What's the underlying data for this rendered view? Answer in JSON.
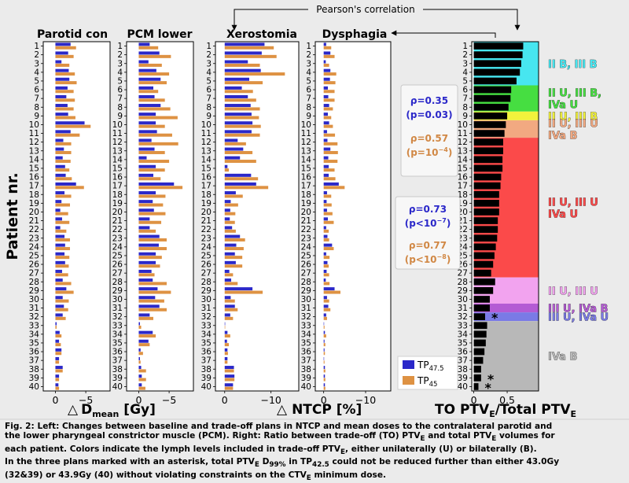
{
  "chart_data": {
    "type": "bar",
    "orientation": "horizontal",
    "y_axis_label": "Patient nr.",
    "patients": [
      1,
      2,
      3,
      4,
      5,
      6,
      7,
      8,
      9,
      10,
      11,
      12,
      13,
      14,
      15,
      16,
      17,
      18,
      19,
      20,
      21,
      22,
      23,
      24,
      25,
      26,
      27,
      28,
      29,
      30,
      31,
      32,
      33,
      34,
      35,
      36,
      37,
      38,
      39,
      40
    ],
    "legend": {
      "tp475": {
        "label": "TP",
        "sub": "47.5",
        "color": "#2b28c9"
      },
      "tp45": {
        "label": "TP",
        "sub": "45",
        "color": "#de9243"
      }
    },
    "panels": [
      {
        "key": "parotid",
        "title": "Parotid con",
        "xlim": [
          2,
          -9
        ],
        "xticks": [
          0,
          -5
        ],
        "xtick_labels": [
          "0",
          "−5"
        ],
        "tp475": [
          -2.5,
          -2.1,
          -1.0,
          -2.2,
          -2.3,
          -2.0,
          -1.8,
          -2.0,
          -2.1,
          -4.8,
          -2.5,
          -1.3,
          -1.4,
          -1.2,
          -1.6,
          -1.7,
          -3.4,
          -1.5,
          -1.0,
          -0.8,
          -1.1,
          -0.8,
          -1.5,
          -1.6,
          -1.5,
          -1.6,
          -1.1,
          -1.2,
          -1.8,
          -1.2,
          -1.4,
          -1.2,
          -0.2,
          -0.7,
          -0.6,
          -1.0,
          -0.6,
          -1.2,
          -0.6,
          -0.5
        ],
        "tp45": [
          -3.4,
          -3.0,
          -2.3,
          -3.2,
          -3.5,
          -3.0,
          -3.2,
          -3.0,
          -3.3,
          -5.8,
          -4.0,
          -2.6,
          -2.6,
          -2.5,
          -2.3,
          -2.7,
          -4.7,
          -2.6,
          -2.4,
          -2.1,
          -2.3,
          -1.8,
          -2.4,
          -2.4,
          -2.3,
          -2.2,
          -2.1,
          -2.6,
          -3.0,
          -2.2,
          -2.1,
          -1.7,
          -0.2,
          -1.0,
          -0.9,
          -1.0,
          -0.6,
          -1.2,
          -0.6,
          -0.6
        ]
      },
      {
        "key": "pcm",
        "title": "PCM lower",
        "xlim": [
          2,
          -9
        ],
        "xticks": [
          0,
          -5
        ],
        "xtick_labels": [
          "0",
          "−5"
        ],
        "tp475": [
          -1.8,
          -3.4,
          -1.6,
          -2.9,
          -3.6,
          -2.4,
          -2.6,
          -3.6,
          -2.8,
          -2.8,
          -3.0,
          -2.1,
          -2.6,
          -1.3,
          -2.8,
          -2.4,
          -5.8,
          -2.8,
          -2.3,
          -2.5,
          -1.8,
          -1.8,
          -3.4,
          -3.3,
          -2.8,
          -2.8,
          -2.1,
          -2.3,
          -3.1,
          -2.7,
          -3.4,
          -1.8,
          -0.2,
          -2.3,
          -1.6,
          -0.3,
          -0.2,
          -0.4,
          -0.5,
          -0.5
        ],
        "tp45": [
          -3.2,
          -5.3,
          -3.8,
          -5.0,
          -4.6,
          -3.2,
          -4.3,
          -5.2,
          -6.4,
          -4.3,
          -5.5,
          -6.5,
          -4.3,
          -5.0,
          -4.3,
          -3.6,
          -7.2,
          -4.4,
          -4.0,
          -4.4,
          -3.7,
          -2.8,
          -4.6,
          -4.6,
          -3.8,
          -3.5,
          -2.6,
          -4.6,
          -5.3,
          -4.2,
          -4.6,
          -2.4,
          -0.4,
          -2.8,
          -1.8,
          -0.7,
          -0.3,
          -1.2,
          -1.2,
          -1.1
        ]
      },
      {
        "key": "xerostomia",
        "title": "Xerostomia",
        "xlim": [
          2,
          -16
        ],
        "xticks": [
          0,
          -10
        ],
        "xtick_labels": [
          "0",
          "−10"
        ],
        "tp475": [
          -8.6,
          -8.0,
          -5.0,
          -7.8,
          -5.3,
          -3.7,
          -5.0,
          -5.6,
          -5.8,
          -6.0,
          -5.8,
          -2.8,
          -4.0,
          -3.3,
          -0.6,
          -5.7,
          -6.8,
          -2.4,
          -1.3,
          -1.2,
          -1.1,
          -1.6,
          -3.3,
          -2.5,
          -2.2,
          -2.4,
          -1.0,
          -1.4,
          -6.0,
          -1.3,
          -2.2,
          -1.2,
          -0.1,
          -0.6,
          -0.5,
          -0.6,
          -0.6,
          -2.0,
          -2.1,
          -1.8
        ],
        "tp45": [
          -10.6,
          -11.2,
          -7.6,
          -13.0,
          -8.2,
          -6.1,
          -6.8,
          -7.6,
          -7.4,
          -7.8,
          -7.6,
          -4.6,
          -6.0,
          -6.8,
          -0.9,
          -7.2,
          -9.4,
          -3.9,
          -2.9,
          -2.3,
          -2.2,
          -2.4,
          -4.4,
          -4.1,
          -3.8,
          -3.8,
          -1.8,
          -2.8,
          -8.2,
          -2.2,
          -2.8,
          -1.8,
          -0.1,
          -1.2,
          -0.9,
          -0.7,
          -0.6,
          -2.0,
          -2.1,
          -1.8
        ]
      },
      {
        "key": "dysphagia",
        "title": "Dysphagia",
        "xlim": [
          2,
          -16
        ],
        "xticks": [
          0,
          -10
        ],
        "xtick_labels": [
          "0",
          "−10"
        ],
        "tp475": [
          -0.6,
          -1.6,
          -0.5,
          -1.6,
          -1.5,
          -1.0,
          -1.1,
          -1.3,
          -1.0,
          -1.3,
          -0.8,
          -0.9,
          -1.6,
          -1.1,
          -1.2,
          -1.2,
          -3.6,
          -0.8,
          -0.7,
          -0.8,
          -1.0,
          -0.6,
          -0.9,
          -2.0,
          -0.6,
          -0.9,
          -0.7,
          -0.5,
          -2.6,
          -0.8,
          -1.1,
          -0.6,
          -0.1,
          -0.3,
          -0.2,
          -0.2,
          -0.1,
          -0.3,
          -0.3,
          -0.3
        ],
        "tp45": [
          -1.8,
          -2.6,
          -1.3,
          -3.0,
          -2.8,
          -2.6,
          -2.6,
          -2.2,
          -1.8,
          -2.2,
          -2.7,
          -3.3,
          -3.4,
          -3.3,
          -2.6,
          -2.8,
          -5.0,
          -1.8,
          -1.9,
          -2.1,
          -2.4,
          -1.2,
          -1.3,
          -2.4,
          -1.4,
          -1.2,
          -1.3,
          -1.4,
          -4.0,
          -1.3,
          -1.6,
          -0.8,
          -0.2,
          -0.6,
          -0.4,
          -0.3,
          -0.2,
          -0.4,
          -0.4,
          -0.4
        ]
      }
    ],
    "ratio_panel": {
      "xlim": [
        -0.03,
        0.97
      ],
      "xticks": [
        0.0,
        0.5
      ],
      "xtick_labels": [
        "0",
        "0.5"
      ],
      "values": [
        0.74,
        0.73,
        0.71,
        0.69,
        0.64,
        0.56,
        0.55,
        0.52,
        0.5,
        0.48,
        0.46,
        0.44,
        0.44,
        0.43,
        0.43,
        0.41,
        0.4,
        0.38,
        0.38,
        0.38,
        0.36,
        0.36,
        0.35,
        0.33,
        0.31,
        0.29,
        0.26,
        0.32,
        0.29,
        0.24,
        0.24,
        0.17,
        0.2,
        0.19,
        0.18,
        0.16,
        0.14,
        0.11,
        0.11,
        0.07
      ],
      "asterisk_patients": [
        32,
        39,
        40
      ],
      "asterisk": "*",
      "bar_color": "#000000",
      "groups": [
        {
          "from": 1,
          "to": 5,
          "color": "#47e6f0",
          "label_lines": [
            "II B, III B"
          ]
        },
        {
          "from": 6,
          "to": 8,
          "color": "#46de41",
          "label_lines": [
            "II U, III B,",
            "IVa U"
          ]
        },
        {
          "from": 9,
          "to": 9,
          "color": "#f2f23c",
          "label_lines": [
            "II U, III B"
          ]
        },
        {
          "from": 10,
          "to": 11,
          "color": "#f2a981",
          "label_lines": [
            "II U, III U",
            "IVa B"
          ]
        },
        {
          "from": 12,
          "to": 27,
          "color": "#fb4a4a",
          "label_lines": [
            "II U, III U",
            "IVa U"
          ]
        },
        {
          "from": 28,
          "to": 30,
          "color": "#f2a3ef",
          "label_lines": [
            "II U, III U"
          ]
        },
        {
          "from": 31,
          "to": 31,
          "color": "#b45bd4",
          "label_lines": [
            "III U, IVa B"
          ]
        },
        {
          "from": 32,
          "to": 32,
          "color": "#7a7ae6",
          "label_lines": [
            "III U, IVa U"
          ]
        },
        {
          "from": 33,
          "to": 40,
          "color": "#b8b8b8",
          "label_lines": [
            "IVa B"
          ]
        }
      ]
    },
    "correlations": [
      {
        "rho": "ρ=0.35",
        "p": "(p=0.03)",
        "color": "#2b28c9"
      },
      {
        "rho": "ρ=0.57",
        "p": "(p=10",
        "p_sup": "−4",
        "p_end": ")",
        "color": "#d18845"
      },
      {
        "rho": "ρ=0.73",
        "p": "(p<10",
        "p_sup": "−7",
        "p_end": ")",
        "color": "#2b28c9"
      },
      {
        "rho": "ρ=0.77",
        "p": "(p<10",
        "p_sup": "−8",
        "p_end": ")",
        "color": "#d18845"
      }
    ],
    "pearson_label": "Pearson's correlation",
    "xlabels": {
      "left_main": "D",
      "left_sub": "mean",
      "left_unit": " [Gy]",
      "middle": "NTCP [%]",
      "right_main": "TO PTV",
      "right_sub1": "E",
      "right_mid": "/Total PTV",
      "right_sub2": "E",
      "delta": "△"
    }
  },
  "caption": {
    "line1": "Fig. 2: Left: Changes between baseline and trade-off plans in NTCP and mean doses to the contralateral parotid and",
    "line2": "the lower pharyngeal constrictor muscle (PCM). Right: Ratio between trade-off (TO) PTV",
    "line2_sub": "E",
    "line2_end": " and total PTV",
    "line2_sub2": "E",
    "line2_tail": " volumes for",
    "line3": "each patient. Colors indicate the lymph levels included in trade-off PTV",
    "line3_sub": "E",
    "line3_tail": ", either unilaterally (U) or bilaterally (B).",
    "line4_a": "In the three plans marked with an asterisk, total PTV",
    "line4_sub": "E",
    "line4_b": " D",
    "line4_sub2": "99%",
    "line4_c": " in TP",
    "line4_sub3": "42.5",
    "line4_d": " could not be reduced further than either 43.0Gy",
    "line5_a": "(32&39) or 43.9Gy (40) without violating constraints on the CTV",
    "line5_sub": "E",
    "line5_b": " minimum dose."
  }
}
